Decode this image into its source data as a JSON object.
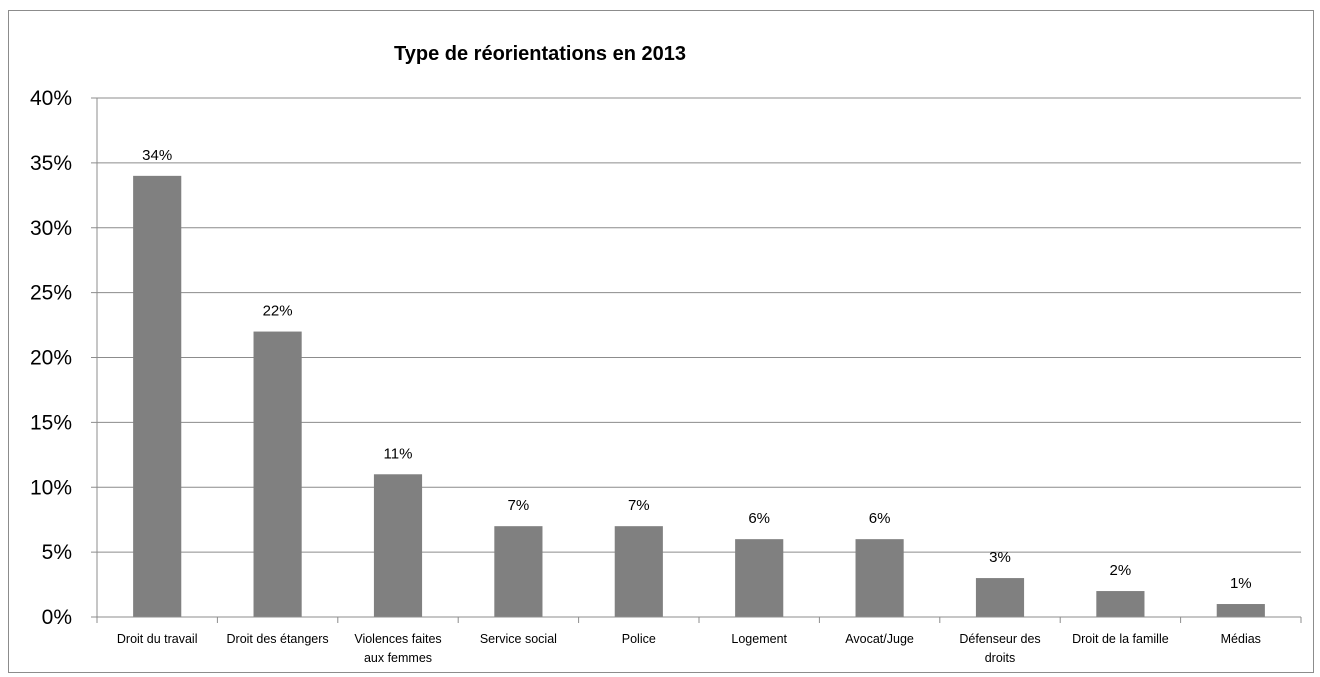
{
  "chart_data": {
    "type": "bar",
    "title": "Type de réorientations en 2013",
    "categories": [
      [
        "Droit du travail"
      ],
      [
        "Droit des étangers"
      ],
      [
        "Violences faites",
        "aux femmes"
      ],
      [
        "Service social"
      ],
      [
        "Police"
      ],
      [
        "Logement"
      ],
      [
        "Avocat/Juge"
      ],
      [
        "Défenseur des",
        "droits"
      ],
      [
        "Droit de la famille"
      ],
      [
        "Médias"
      ]
    ],
    "values": [
      34,
      22,
      11,
      7,
      7,
      6,
      6,
      3,
      2,
      1
    ],
    "data_labels": [
      "34%",
      "22%",
      "11%",
      "7%",
      "7%",
      "6%",
      "6%",
      "3%",
      "2%",
      "1%"
    ],
    "y_ticks": [
      "0%",
      "5%",
      "10%",
      "15%",
      "20%",
      "25%",
      "30%",
      "35%",
      "40%"
    ],
    "ylim": [
      0,
      40
    ],
    "grid": true,
    "legend": "none",
    "colors": {
      "bar": "#808080",
      "grid": "#8c8c8c",
      "axis": "#8c8c8c"
    }
  }
}
